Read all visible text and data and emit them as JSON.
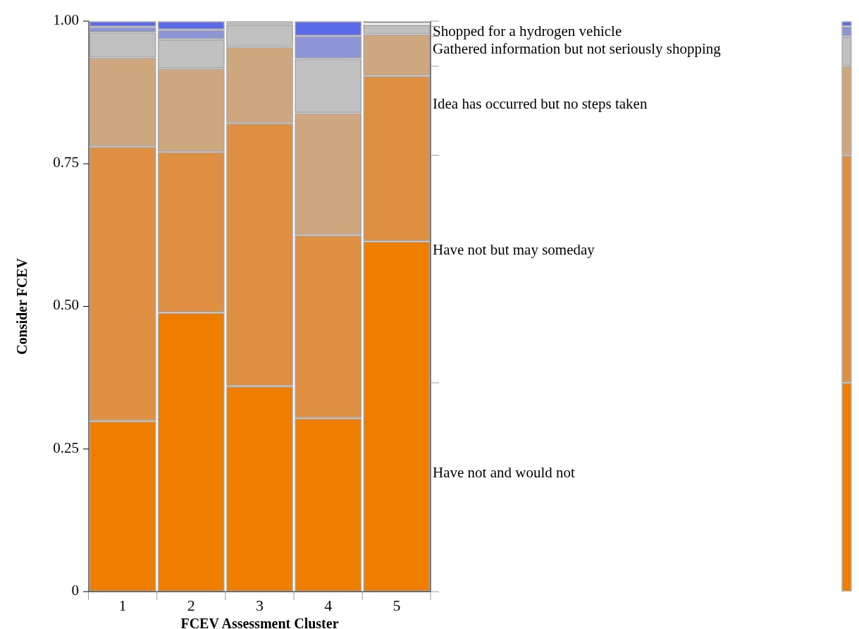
{
  "chart_data": [
    {
      "type": "bar",
      "stacked": true,
      "xlabel": "FCEV Assessment Cluster",
      "ylabel": "Consider FCEV",
      "categories": [
        "1",
        "2",
        "3",
        "4",
        "5"
      ],
      "series": [
        {
          "name": "Have not and would not",
          "color": "#ee7d00",
          "values": [
            0.299,
            0.489,
            0.36,
            0.304,
            0.614
          ]
        },
        {
          "name": "Have not but may someday",
          "color": "#de8f41",
          "values": [
            0.481,
            0.282,
            0.461,
            0.321,
            0.29
          ]
        },
        {
          "name": "Idea has occurred but no steps taken",
          "color": "#cfa77e",
          "values": [
            0.156,
            0.146,
            0.134,
            0.214,
            0.073
          ]
        },
        {
          "name": "Gathered information but not seriously shopping",
          "color": "#c0c0c0",
          "values": [
            0.044,
            0.051,
            0.039,
            0.095,
            0.017
          ]
        },
        {
          "color": "#8c96d4",
          "values": [
            0.01,
            0.017,
            0.003,
            0.04,
            0.002
          ]
        },
        {
          "name": "Shopped for a hydrogen vehicle",
          "color": "#5b6ae8",
          "values": [
            0.01,
            0.015,
            0.003,
            0.026,
            0.004
          ]
        }
      ],
      "ylim": [
        0,
        1
      ],
      "yticks": [
        {
          "value": 0,
          "label": "0"
        },
        0.25,
        {
          "value": 0.5,
          "label": "0.50"
        },
        0.75,
        {
          "value": 1,
          "label": "1.00"
        }
      ],
      "legend": "right",
      "grid": false
    },
    {
      "type": "bar",
      "stacked": true,
      "categories": [
        null
      ],
      "series": [
        {
          "color": "#ee7d00",
          "values": [
            0.366
          ]
        },
        {
          "color": "#de8f41",
          "values": [
            0.399
          ]
        },
        {
          "color": "#cfa77e",
          "values": [
            0.156
          ]
        },
        {
          "color": "#c0c0c0",
          "values": [
            0.052
          ]
        },
        {
          "color": "#8c96d4",
          "values": [
            0.018
          ]
        },
        {
          "color": "#5b6ae8",
          "values": [
            0.009
          ]
        }
      ],
      "ylim": [
        0,
        1
      ]
    }
  ]
}
